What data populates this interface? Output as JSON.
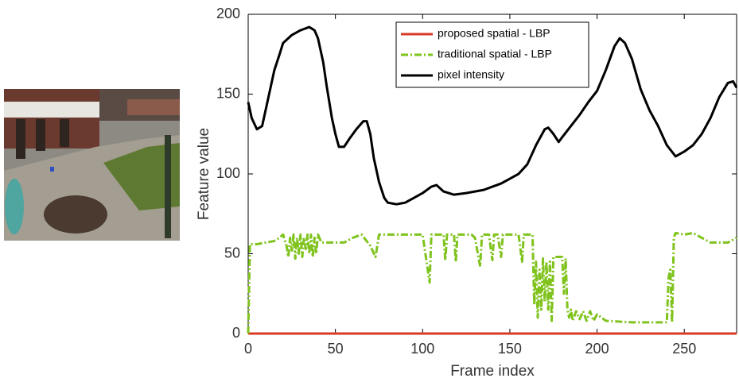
{
  "chart_data": {
    "type": "line",
    "xlabel": "Frame index",
    "ylabel": "Feature value",
    "xlim": [
      0,
      280
    ],
    "xticks": [
      0,
      50,
      100,
      150,
      200,
      250
    ],
    "ylim": [
      0,
      200
    ],
    "yticks": [
      0,
      50,
      100,
      150,
      200
    ],
    "legend": "upper center",
    "series": [
      {
        "name": "proposed spatial - LBP",
        "color": "#d93a26",
        "linestyle": "solid",
        "x": [
          0,
          280
        ],
        "values": [
          0,
          0
        ]
      },
      {
        "name": "traditional spatial - LBP",
        "color": "#7fc31c",
        "linestyle": "dashdot",
        "x": [
          0,
          1,
          5,
          10,
          15,
          18,
          20,
          22,
          23,
          24,
          25,
          26,
          27,
          28,
          29,
          30,
          31,
          32,
          33,
          34,
          35,
          36,
          37,
          38,
          39,
          40,
          42,
          50,
          55,
          60,
          65,
          70,
          73,
          75,
          100,
          104,
          105,
          112,
          113,
          114,
          118,
          119,
          120,
          128,
          130,
          133,
          134,
          138,
          140,
          141,
          143,
          145,
          146,
          155,
          157,
          158,
          163,
          164,
          165,
          166,
          167,
          168,
          169,
          170,
          171,
          172,
          173,
          174,
          175,
          180,
          181,
          182,
          183,
          184,
          185,
          186,
          188,
          190,
          192,
          194,
          196,
          198,
          200,
          205,
          220,
          240,
          241,
          242,
          243,
          244,
          245,
          250,
          255,
          260,
          265,
          270,
          275,
          280
        ],
        "values": [
          0,
          56,
          56,
          57,
          58,
          60,
          62,
          55,
          48,
          60,
          52,
          62,
          47,
          60,
          50,
          62,
          48,
          60,
          53,
          62,
          50,
          62,
          48,
          60,
          50,
          62,
          57,
          57,
          57,
          60,
          62,
          55,
          48,
          62,
          62,
          32,
          62,
          62,
          46,
          62,
          62,
          45,
          62,
          62,
          60,
          42,
          62,
          62,
          46,
          62,
          62,
          48,
          62,
          62,
          45,
          62,
          62,
          18,
          45,
          10,
          40,
          15,
          47,
          20,
          45,
          15,
          45,
          8,
          48,
          48,
          25,
          47,
          15,
          10,
          15,
          8,
          14,
          9,
          14,
          8,
          14,
          8,
          12,
          8,
          7,
          7,
          35,
          40,
          7,
          60,
          63,
          62,
          63,
          60,
          57,
          57,
          57,
          60
        ]
      },
      {
        "name": "pixel intensity",
        "color": "#000000",
        "linestyle": "solid",
        "x": [
          0,
          2,
          5,
          8,
          10,
          13,
          15,
          18,
          20,
          25,
          30,
          35,
          38,
          40,
          43,
          45,
          48,
          50,
          52,
          55,
          58,
          62,
          66,
          68,
          70,
          72,
          75,
          78,
          80,
          85,
          90,
          95,
          100,
          105,
          108,
          112,
          118,
          125,
          130,
          135,
          140,
          145,
          150,
          155,
          160,
          165,
          170,
          172,
          175,
          178,
          180,
          185,
          190,
          195,
          200,
          205,
          210,
          213,
          216,
          220,
          225,
          230,
          235,
          240,
          245,
          250,
          255,
          260,
          265,
          270,
          275,
          278,
          280
        ],
        "values": [
          145,
          135,
          128,
          130,
          140,
          155,
          165,
          175,
          182,
          187,
          190,
          192,
          190,
          185,
          170,
          155,
          135,
          125,
          117,
          117,
          122,
          128,
          133,
          133,
          125,
          110,
          95,
          85,
          82,
          81,
          82,
          85,
          88,
          92,
          93,
          89,
          87,
          88,
          89,
          90,
          92,
          94,
          97,
          100,
          106,
          118,
          128,
          129,
          125,
          120,
          123,
          130,
          137,
          145,
          152,
          165,
          180,
          185,
          182,
          172,
          153,
          140,
          130,
          118,
          111,
          114,
          118,
          125,
          135,
          148,
          157,
          158,
          154
        ]
      }
    ]
  }
}
